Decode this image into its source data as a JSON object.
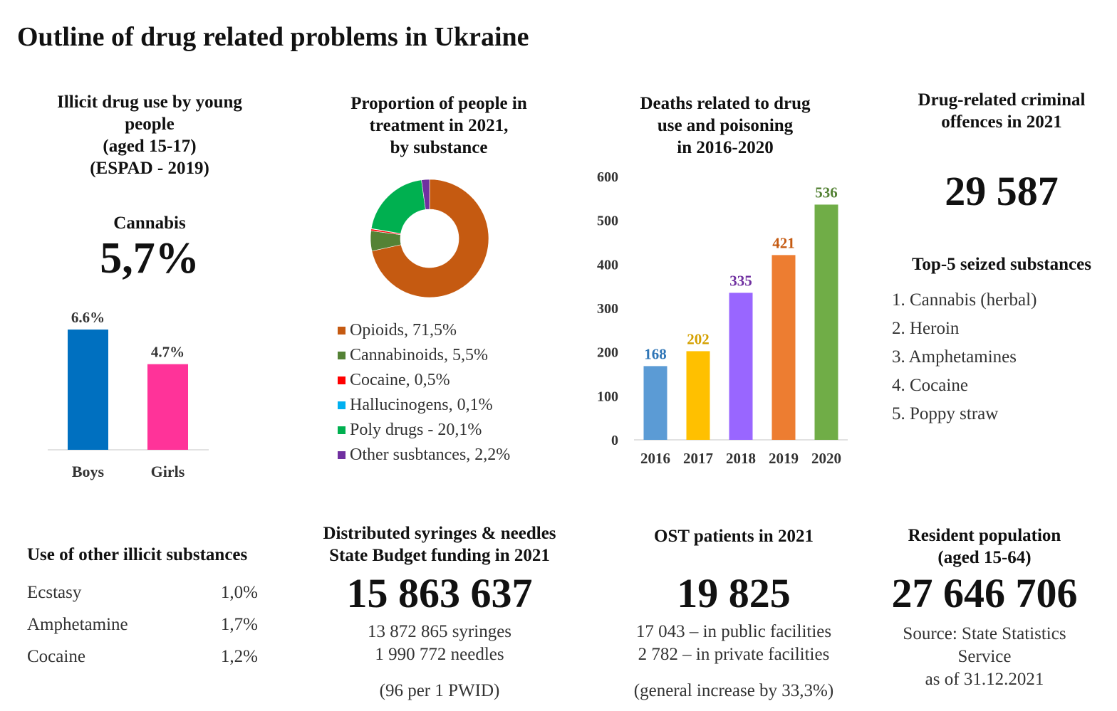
{
  "title": "Outline of drug related problems in Ukraine",
  "youth": {
    "heading": [
      "Illicit drug use by young",
      "people",
      "(aged 15-17)",
      "(ESPAD - 2019)"
    ],
    "cannabis_label": "Cannabis",
    "cannabis_value": "5,7%"
  },
  "treatment": {
    "heading": [
      "Proportion of people in",
      "treatment in 2021,",
      "by substance"
    ]
  },
  "deaths": {
    "heading": [
      "Deaths related to drug",
      "use and poisoning",
      "in 2016-2020"
    ]
  },
  "offences": {
    "heading": [
      "Drug-related criminal",
      "offences in 2021"
    ],
    "value": "29 587",
    "top5_heading": "Top-5 seized substances",
    "top5": [
      "1. Cannabis (herbal)",
      "2. Heroin",
      "3. Amphetamines",
      "4. Cocaine",
      "5. Poppy straw"
    ]
  },
  "other_use": {
    "heading": "Use of other illicit substances",
    "rows": [
      {
        "name": "Ecstasy",
        "value": "1,0%"
      },
      {
        "name": "Amphetamine",
        "value": "1,7%"
      },
      {
        "name": "Cocaine",
        "value": "1,2%"
      }
    ]
  },
  "syringes": {
    "heading": [
      "Distributed syringes & needles",
      "State Budget funding in 2021"
    ],
    "value": "15 863 637",
    "lines": [
      "13 872 865 syringes",
      "1 990 772 needles"
    ],
    "note": "(96 per 1 PWID)"
  },
  "ost": {
    "heading": "OST patients in 2021",
    "value": "19 825",
    "lines": [
      "17 043 – in public facilities",
      "2 782 – in private facilities"
    ],
    "note": "(general increase by 33,3%)"
  },
  "population": {
    "heading": [
      "Resident population",
      "(aged 15-64)"
    ],
    "value": "27 646 706",
    "lines": [
      "Source: State Statistics",
      "Service",
      "as of 31.12.2021"
    ]
  },
  "chart_data": [
    {
      "type": "bar",
      "categories": [
        "Boys",
        "Girls"
      ],
      "values": [
        6.6,
        4.7
      ],
      "data_labels": [
        "6.6%",
        "4.7%"
      ],
      "colors": [
        "#0070c0",
        "#ff3399"
      ],
      "ylim": [
        0,
        7.5
      ]
    },
    {
      "type": "pie",
      "donut": true,
      "labels": [
        "Opioids, 71,5%",
        "Cannabinoids, 5,5%",
        "Cocaine, 0,5%",
        "Hallucinogens, 0,1%",
        "Poly drugs - 20,1%",
        "Other susbtances,  2,2%"
      ],
      "values": [
        71.5,
        5.5,
        0.5,
        0.1,
        20.1,
        2.2
      ],
      "colors": [
        "#c55a11",
        "#548235",
        "#ff0000",
        "#00b0f0",
        "#00b050",
        "#7030a0"
      ],
      "legend": "bottom"
    },
    {
      "type": "bar",
      "categories": [
        "2016",
        "2017",
        "2018",
        "2019",
        "2020"
      ],
      "values": [
        168,
        202,
        335,
        421,
        536
      ],
      "colors": [
        "#5b9bd5",
        "#ffc000",
        "#9966ff",
        "#ed7d31",
        "#70ad47"
      ],
      "label_colors": [
        "#2e75b6",
        "#d4a000",
        "#7030a0",
        "#c55a11",
        "#548235"
      ],
      "ylim": [
        0,
        600
      ],
      "yticks": [
        0,
        100,
        200,
        300,
        400,
        500,
        600
      ]
    }
  ]
}
